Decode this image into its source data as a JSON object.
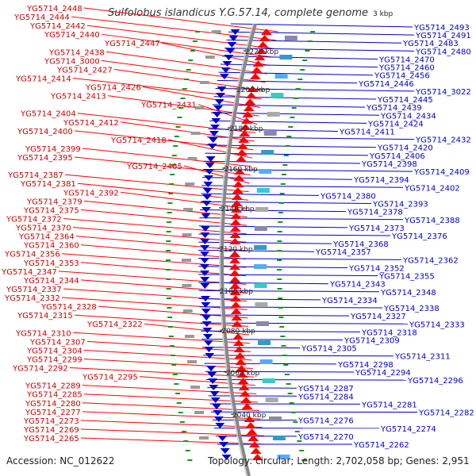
{
  "title": "Sulfolobus islandicus Y.G.57.14, complete genome",
  "footer": {
    "accession": "Accession: NC_012622",
    "summary": "Topology: circular; Length: 2,702,058 bp; Genes: 2,951"
  },
  "colors": {
    "forward": "#ff0000",
    "reverse": "#0000cc",
    "backbone": "#888888",
    "tick": "#119911",
    "left_label": "#cc0000",
    "right_label": "#0000cc"
  },
  "kbp_ticks": [
    "2220 kbp",
    "2200 kbp",
    "2180 kbp",
    "2160 kbp",
    "2140 kbp",
    "2120 kbp",
    "2100 kbp",
    "2080 kbp",
    "2060 kbp",
    "2040 kbp",
    "3 kbp"
  ],
  "left_labels": [
    "YG5714_2448",
    "YG5714_2444",
    "YG5714_2442",
    "YG5714_2440",
    "YG5714_2447",
    "YG5714_2438",
    "YG5714_3000",
    "YG5714_2427",
    "YG5714_2414",
    "YG5714_2426",
    "YG5714_2413",
    "YG5714_2431",
    "YG5714_2404",
    "YG5714_2412",
    "YG5714_2400",
    "YG5714_2418",
    "YG5714_2399",
    "YG5714_2395",
    "YG5714_2405",
    "YG5714_2387",
    "YG5714_2381",
    "YG5714_2392",
    "YG5714_2379",
    "YG5714_2375",
    "YG5714_2372",
    "YG5714_2370",
    "YG5714_2364",
    "YG5714_2360",
    "YG5714_2356",
    "YG5714_2353",
    "YG5714_2347",
    "YG5714_2344",
    "YG5714_2337",
    "YG5714_2332",
    "YG5714_2328",
    "YG5714_2315",
    "YG5714_2322",
    "YG5714_2310",
    "YG5714_2307",
    "YG5714_2304",
    "YG5714_2299",
    "YG5714_2292",
    "YG5714_2295",
    "YG5714_2289",
    "YG5714_2285",
    "YG5714_2280",
    "YG5714_2277",
    "YG5714_2273",
    "YG5714_2269",
    "YG5714_2265"
  ],
  "right_labels": [
    "YG5714_2493",
    "YG5714_2491",
    "YG5714_2483",
    "YG5714_2480",
    "YG5714_2470",
    "YG5714_2460",
    "YG5714_2456",
    "YG5714_2446",
    "YG5714_3022",
    "YG5714_2445",
    "YG5714_2439",
    "YG5714_2434",
    "YG5714_2424",
    "YG5714_2411",
    "YG5714_2432",
    "YG5714_2420",
    "YG5714_2406",
    "YG5714_2398",
    "YG5714_2409",
    "YG5714_2394",
    "YG5714_2402",
    "YG5714_2380",
    "YG5714_2393",
    "YG5714_2378",
    "YG5714_2388",
    "YG5714_2373",
    "YG5714_2376",
    "YG5714_2368",
    "YG5714_2357",
    "YG5714_2362",
    "YG5714_2352",
    "YG5714_2355",
    "YG5714_2343",
    "YG5714_2348",
    "YG5714_2334",
    "YG5714_2338",
    "YG5714_2327",
    "YG5714_2333",
    "YG5714_2318",
    "YG5714_2309",
    "YG5714_2305",
    "YG5714_2311",
    "YG5714_2298",
    "YG5714_2294",
    "YG5714_2296",
    "YG5714_2287",
    "YG5714_2284",
    "YG5714_2281",
    "YG5714_2282",
    "YG5714_2276",
    "YG5714_2274",
    "YG5714_2270",
    "YG5714_2262"
  ]
}
